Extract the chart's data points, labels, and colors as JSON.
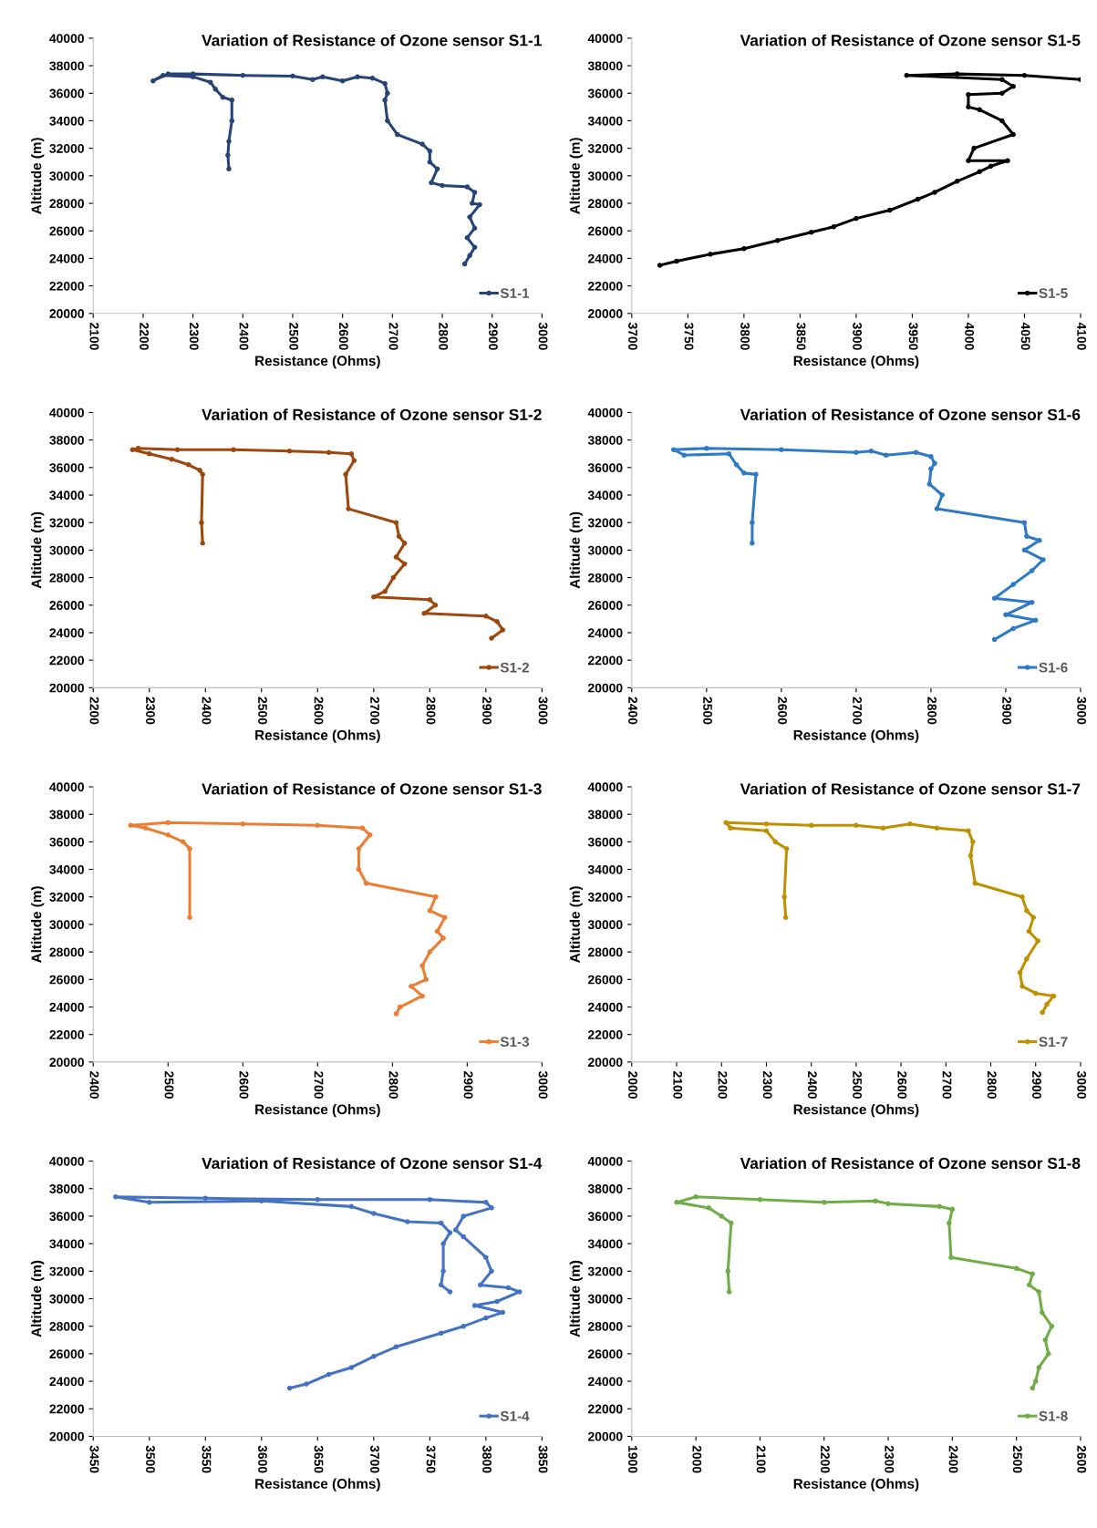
{
  "chart_data": [
    {
      "type": "line",
      "title": "Variation of Resistance of Ozone sensor S1-1",
      "xlabel": "Resistance (Ohms)",
      "ylabel": "Altitude (m)",
      "xlim": [
        2100,
        3000
      ],
      "xticks": [
        2100,
        2200,
        2300,
        2400,
        2500,
        2600,
        2700,
        2800,
        2900,
        3000
      ],
      "ylim": [
        20000,
        40000
      ],
      "yticks": [
        20000,
        22000,
        24000,
        26000,
        28000,
        30000,
        32000,
        34000,
        36000,
        38000,
        40000
      ],
      "legend": "bottom right",
      "marker": "circle",
      "grid": false,
      "series": [
        {
          "name": "S1-1",
          "color": "#264478",
          "x": [
            2372,
            2370,
            2372,
            2378,
            2378,
            2360,
            2345,
            2335,
            2300,
            2240,
            2220,
            2250,
            2300,
            2400,
            2500,
            2540,
            2560,
            2600,
            2630,
            2660,
            2685,
            2690,
            2685,
            2690,
            2710,
            2760,
            2775,
            2775,
            2790,
            2778,
            2800,
            2850,
            2865,
            2860,
            2875,
            2855,
            2865,
            2850,
            2865,
            2855,
            2845
          ],
          "values": [
            30500,
            31500,
            32500,
            34000,
            35500,
            35700,
            36300,
            36800,
            37200,
            37300,
            36900,
            37400,
            37400,
            37300,
            37250,
            37000,
            37200,
            36900,
            37200,
            37100,
            36700,
            36000,
            35500,
            34000,
            33000,
            32300,
            31800,
            31000,
            30500,
            29500,
            29300,
            29200,
            28800,
            28000,
            27900,
            27000,
            26200,
            25500,
            24800,
            24200,
            23600
          ]
        }
      ]
    },
    {
      "type": "line",
      "title": "Variation of Resistance of Ozone sensor S1-5",
      "xlabel": "Resistance (Ohms)",
      "ylabel": "Altitude (m)",
      "xlim": [
        3700,
        4100
      ],
      "xticks": [
        3700,
        3750,
        3800,
        3850,
        3900,
        3950,
        4000,
        4050,
        4100
      ],
      "ylim": [
        20000,
        40000
      ],
      "yticks": [
        20000,
        22000,
        24000,
        26000,
        28000,
        30000,
        32000,
        34000,
        36000,
        38000,
        40000
      ],
      "legend": "bottom right",
      "marker": "circle",
      "grid": false,
      "series": [
        {
          "name": "S1-5",
          "color": "#000000",
          "x": [
            3725,
            3740,
            3770,
            3800,
            3830,
            3860,
            3880,
            3900,
            3930,
            3955,
            3970,
            3990,
            4010,
            4020,
            4035,
            4000,
            4005,
            4040,
            4030,
            4010,
            4000,
            4000,
            4030,
            4040,
            4030,
            3945,
            3990,
            4050,
            4100
          ],
          "values": [
            23500,
            23800,
            24300,
            24700,
            25300,
            25900,
            26300,
            26900,
            27500,
            28300,
            28800,
            29600,
            30300,
            30700,
            31100,
            31100,
            32000,
            33000,
            34000,
            34800,
            35000,
            35900,
            36000,
            36500,
            37000,
            37300,
            37400,
            37300,
            37000
          ]
        }
      ]
    },
    {
      "type": "line",
      "title": "Variation of Resistance of Ozone sensor S1-2",
      "xlabel": "Resistance (Ohms)",
      "ylabel": "Altitude (m)",
      "xlim": [
        2200,
        3000
      ],
      "xticks": [
        2200,
        2300,
        2400,
        2500,
        2600,
        2700,
        2800,
        2900,
        3000
      ],
      "ylim": [
        20000,
        40000
      ],
      "yticks": [
        20000,
        22000,
        24000,
        26000,
        28000,
        30000,
        32000,
        34000,
        36000,
        38000,
        40000
      ],
      "legend": "bottom right",
      "marker": "circle",
      "grid": false,
      "series": [
        {
          "name": "S1-2",
          "color": "#9e480e",
          "x": [
            2395,
            2393,
            2395,
            2390,
            2370,
            2340,
            2300,
            2270,
            2280,
            2350,
            2450,
            2550,
            2620,
            2660,
            2665,
            2650,
            2655,
            2740,
            2745,
            2755,
            2740,
            2755,
            2735,
            2720,
            2700,
            2800,
            2810,
            2790,
            2900,
            2920,
            2930,
            2910
          ],
          "values": [
            30500,
            32000,
            35500,
            35800,
            36200,
            36600,
            37000,
            37300,
            37400,
            37300,
            37300,
            37200,
            37100,
            37000,
            36500,
            35500,
            33000,
            32000,
            31000,
            30500,
            29500,
            29000,
            28000,
            27000,
            26600,
            26400,
            26000,
            25400,
            25200,
            24800,
            24200,
            23600
          ]
        }
      ]
    },
    {
      "type": "line",
      "title": "Variation of Resistance of Ozone sensor S1-6",
      "xlabel": "Resistance (Ohms)",
      "ylabel": "Altitude (m)",
      "xlim": [
        2400,
        3000
      ],
      "xticks": [
        2400,
        2500,
        2600,
        2700,
        2800,
        2900,
        3000
      ],
      "ylim": [
        20000,
        40000
      ],
      "yticks": [
        20000,
        22000,
        24000,
        26000,
        28000,
        30000,
        32000,
        34000,
        36000,
        38000,
        40000
      ],
      "legend": "bottom right",
      "marker": "circle",
      "grid": false,
      "series": [
        {
          "name": "S1-6",
          "color": "#2e7ac6",
          "x": [
            2561,
            2561,
            2566,
            2550,
            2540,
            2530,
            2470,
            2456,
            2500,
            2600,
            2700,
            2720,
            2740,
            2780,
            2800,
            2805,
            2800,
            2798,
            2815,
            2808,
            2925,
            2928,
            2945,
            2925,
            2950,
            2935,
            2910,
            2885,
            2935,
            2900,
            2940,
            2910,
            2885
          ],
          "values": [
            30500,
            32000,
            35500,
            35600,
            36200,
            37000,
            36900,
            37300,
            37400,
            37300,
            37100,
            37200,
            36900,
            37100,
            36800,
            36300,
            35900,
            34800,
            34000,
            33000,
            32000,
            31000,
            30700,
            30000,
            29300,
            28500,
            27500,
            26500,
            26200,
            25300,
            24900,
            24300,
            23500
          ]
        }
      ]
    },
    {
      "type": "line",
      "title": "Variation of Resistance of Ozone sensor S1-3",
      "xlabel": "Resistance (Ohms)",
      "ylabel": "Altitude (m)",
      "xlim": [
        2400,
        3000
      ],
      "xticks": [
        2400,
        2500,
        2600,
        2700,
        2800,
        2900,
        3000
      ],
      "ylim": [
        20000,
        40000
      ],
      "yticks": [
        20000,
        22000,
        24000,
        26000,
        28000,
        30000,
        32000,
        34000,
        36000,
        38000,
        40000
      ],
      "legend": "bottom right",
      "marker": "circle",
      "grid": false,
      "series": [
        {
          "name": "S1-3",
          "color": "#ed7d31",
          "x": [
            2529,
            2529,
            2520,
            2500,
            2470,
            2450,
            2500,
            2600,
            2700,
            2760,
            2770,
            2755,
            2755,
            2765,
            2858,
            2850,
            2870,
            2860,
            2868,
            2850,
            2840,
            2845,
            2825,
            2840,
            2810,
            2805
          ],
          "values": [
            30500,
            35500,
            36000,
            36500,
            37000,
            37200,
            37400,
            37300,
            37200,
            37000,
            36500,
            35500,
            34000,
            33000,
            32000,
            31000,
            30500,
            29500,
            29000,
            28000,
            27000,
            26000,
            25500,
            24800,
            24000,
            23500
          ]
        }
      ]
    },
    {
      "type": "line",
      "title": "Variation of Resistance of Ozone sensor S1-7",
      "xlabel": "Resistance (Ohms)",
      "ylabel": "Altitude (m)",
      "xlim": [
        2000,
        3000
      ],
      "xticks": [
        2000,
        2100,
        2200,
        2300,
        2400,
        2500,
        2600,
        2700,
        2800,
        2900,
        3000
      ],
      "ylim": [
        20000,
        40000
      ],
      "yticks": [
        20000,
        22000,
        24000,
        26000,
        28000,
        30000,
        32000,
        34000,
        36000,
        38000,
        40000
      ],
      "legend": "bottom right",
      "marker": "circle",
      "grid": false,
      "series": [
        {
          "name": "S1-7",
          "color": "#bf9000",
          "x": [
            2343,
            2340,
            2345,
            2320,
            2300,
            2220,
            2210,
            2300,
            2400,
            2500,
            2560,
            2620,
            2680,
            2750,
            2760,
            2755,
            2765,
            2870,
            2880,
            2895,
            2885,
            2905,
            2880,
            2865,
            2870,
            2900,
            2940,
            2925,
            2915
          ],
          "values": [
            30500,
            32000,
            35500,
            36000,
            36800,
            37000,
            37400,
            37300,
            37200,
            37200,
            37000,
            37300,
            37000,
            36800,
            36000,
            35000,
            33000,
            32000,
            31000,
            30500,
            29500,
            28800,
            27500,
            26500,
            25500,
            25000,
            24800,
            24200,
            23600
          ]
        }
      ]
    },
    {
      "type": "line",
      "title": "Variation of Resistance of Ozone sensor S1-4",
      "xlabel": "Resistance (Ohms)",
      "ylabel": "Altitude (m)",
      "xlim": [
        3450,
        3850
      ],
      "xticks": [
        3450,
        3500,
        3550,
        3600,
        3650,
        3700,
        3750,
        3800,
        3850
      ],
      "ylim": [
        20000,
        40000
      ],
      "yticks": [
        20000,
        22000,
        24000,
        26000,
        28000,
        30000,
        32000,
        34000,
        36000,
        38000,
        40000
      ],
      "legend": "bottom right",
      "marker": "circle",
      "grid": false,
      "series": [
        {
          "name": "S1-4",
          "color": "#4472c4",
          "x": [
            3768,
            3760,
            3762,
            3762,
            3768,
            3760,
            3730,
            3700,
            3680,
            3600,
            3500,
            3470,
            3550,
            3650,
            3750,
            3800,
            3805,
            3780,
            3773,
            3780,
            3800,
            3805,
            3795,
            3820,
            3830,
            3810,
            3790,
            3815,
            3800,
            3780,
            3760,
            3720,
            3700,
            3680,
            3660,
            3640,
            3625
          ],
          "values": [
            30500,
            31000,
            32000,
            34000,
            34800,
            35500,
            35600,
            36200,
            36700,
            37100,
            37000,
            37400,
            37300,
            37200,
            37200,
            37000,
            36600,
            36000,
            35000,
            34500,
            33000,
            32000,
            31000,
            30800,
            30500,
            29800,
            29500,
            29000,
            28600,
            28000,
            27500,
            26500,
            25800,
            25000,
            24500,
            23800,
            23500
          ]
        }
      ]
    },
    {
      "type": "line",
      "title": "Variation of Resistance of Ozone sensor S1-8",
      "xlabel": "Resistance (Ohms)",
      "ylabel": "Altitude (m)",
      "xlim": [
        1900,
        2600
      ],
      "xticks": [
        1900,
        2000,
        2100,
        2200,
        2300,
        2400,
        2500,
        2600
      ],
      "ylim": [
        20000,
        40000
      ],
      "yticks": [
        20000,
        22000,
        24000,
        26000,
        28000,
        30000,
        32000,
        34000,
        36000,
        38000,
        40000
      ],
      "legend": "bottom right",
      "marker": "circle",
      "grid": false,
      "series": [
        {
          "name": "S1-8",
          "color": "#70ad47",
          "x": [
            2052,
            2050,
            2055,
            2040,
            2020,
            1970,
            2000,
            2100,
            2200,
            2280,
            2300,
            2380,
            2400,
            2395,
            2398,
            2500,
            2525,
            2520,
            2535,
            2540,
            2555,
            2545,
            2550,
            2535,
            2530,
            2525
          ],
          "values": [
            30500,
            32000,
            35500,
            36000,
            36600,
            37000,
            37400,
            37200,
            37000,
            37100,
            36900,
            36700,
            36500,
            35500,
            33000,
            32200,
            31800,
            31000,
            30500,
            29000,
            28000,
            27000,
            26000,
            25000,
            24000,
            23500
          ]
        }
      ]
    }
  ]
}
